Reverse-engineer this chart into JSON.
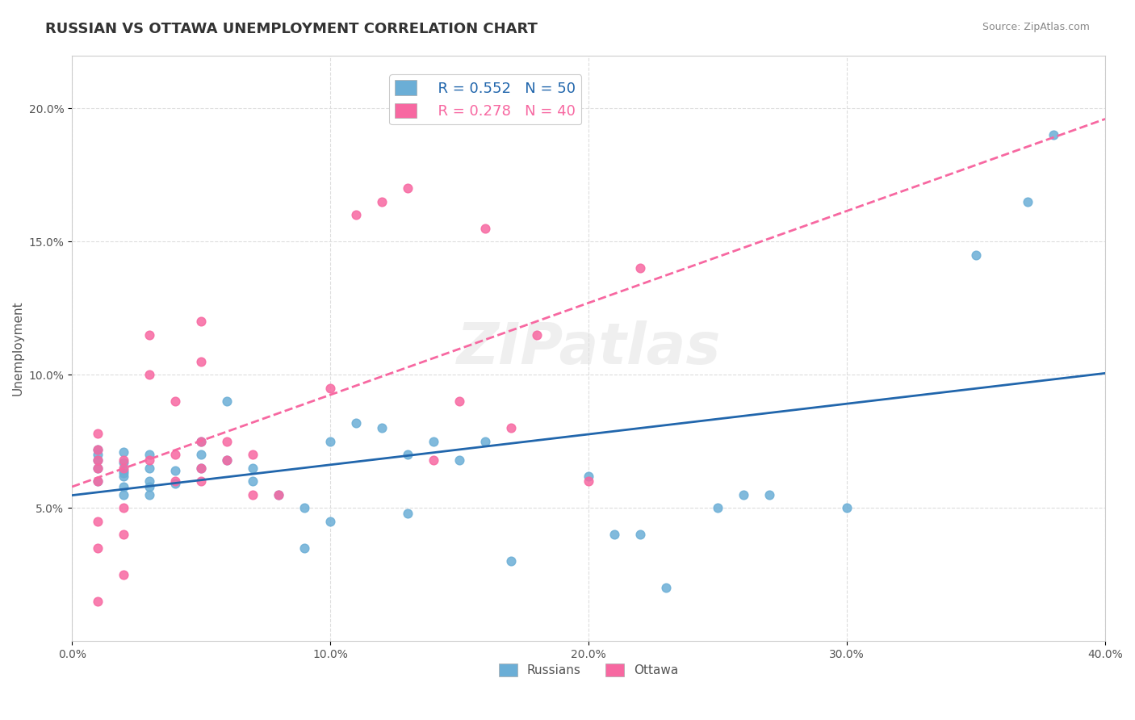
{
  "title": "RUSSIAN VS OTTAWA UNEMPLOYMENT CORRELATION CHART",
  "source_text": "Source: ZipAtlas.com",
  "xlabel": "",
  "ylabel": "Unemployment",
  "watermark": "ZIPatlas",
  "xlim": [
    0.0,
    0.4
  ],
  "ylim": [
    0.0,
    0.22
  ],
  "x_ticks": [
    0.0,
    0.1,
    0.2,
    0.3,
    0.4
  ],
  "x_tick_labels": [
    "0.0%",
    "10.0%",
    "20.0%",
    "30.0%",
    "40.0%"
  ],
  "y_ticks": [
    0.05,
    0.1,
    0.15,
    0.2
  ],
  "y_tick_labels": [
    "5.0%",
    "10.0%",
    "15.0%",
    "20.0%"
  ],
  "blue_color": "#6baed6",
  "pink_color": "#f768a1",
  "blue_line_color": "#2166ac",
  "pink_line_color": "#f768a1",
  "legend_R1": "R = 0.552",
  "legend_N1": "N = 50",
  "legend_R2": "R = 0.278",
  "legend_N2": "N = 40",
  "russians_x": [
    0.01,
    0.01,
    0.01,
    0.01,
    0.01,
    0.02,
    0.02,
    0.02,
    0.02,
    0.02,
    0.02,
    0.02,
    0.03,
    0.03,
    0.03,
    0.03,
    0.03,
    0.04,
    0.04,
    0.05,
    0.05,
    0.05,
    0.06,
    0.06,
    0.07,
    0.07,
    0.08,
    0.09,
    0.09,
    0.1,
    0.1,
    0.11,
    0.12,
    0.13,
    0.13,
    0.14,
    0.15,
    0.16,
    0.17,
    0.2,
    0.21,
    0.22,
    0.23,
    0.25,
    0.26,
    0.27,
    0.3,
    0.35,
    0.37,
    0.38
  ],
  "russians_y": [
    0.065,
    0.072,
    0.068,
    0.07,
    0.06,
    0.064,
    0.062,
    0.071,
    0.055,
    0.058,
    0.063,
    0.067,
    0.06,
    0.055,
    0.058,
    0.065,
    0.07,
    0.064,
    0.059,
    0.07,
    0.065,
    0.075,
    0.068,
    0.09,
    0.06,
    0.065,
    0.055,
    0.035,
    0.05,
    0.045,
    0.075,
    0.082,
    0.08,
    0.048,
    0.07,
    0.075,
    0.068,
    0.075,
    0.03,
    0.062,
    0.04,
    0.04,
    0.02,
    0.05,
    0.055,
    0.055,
    0.05,
    0.145,
    0.165,
    0.19
  ],
  "ottawa_x": [
    0.01,
    0.01,
    0.01,
    0.01,
    0.01,
    0.01,
    0.01,
    0.01,
    0.02,
    0.02,
    0.02,
    0.02,
    0.02,
    0.03,
    0.03,
    0.03,
    0.04,
    0.04,
    0.04,
    0.05,
    0.05,
    0.05,
    0.05,
    0.05,
    0.06,
    0.06,
    0.07,
    0.07,
    0.08,
    0.1,
    0.11,
    0.12,
    0.13,
    0.14,
    0.15,
    0.16,
    0.17,
    0.18,
    0.2,
    0.22
  ],
  "ottawa_y": [
    0.072,
    0.068,
    0.06,
    0.035,
    0.078,
    0.065,
    0.045,
    0.015,
    0.068,
    0.065,
    0.05,
    0.04,
    0.025,
    0.068,
    0.1,
    0.115,
    0.07,
    0.06,
    0.09,
    0.075,
    0.06,
    0.12,
    0.105,
    0.065,
    0.068,
    0.075,
    0.07,
    0.055,
    0.055,
    0.095,
    0.16,
    0.165,
    0.17,
    0.068,
    0.09,
    0.155,
    0.08,
    0.115,
    0.06,
    0.14
  ],
  "background_color": "#ffffff",
  "grid_color": "#dddddd",
  "title_fontsize": 13,
  "axis_label_fontsize": 11,
  "tick_fontsize": 10
}
